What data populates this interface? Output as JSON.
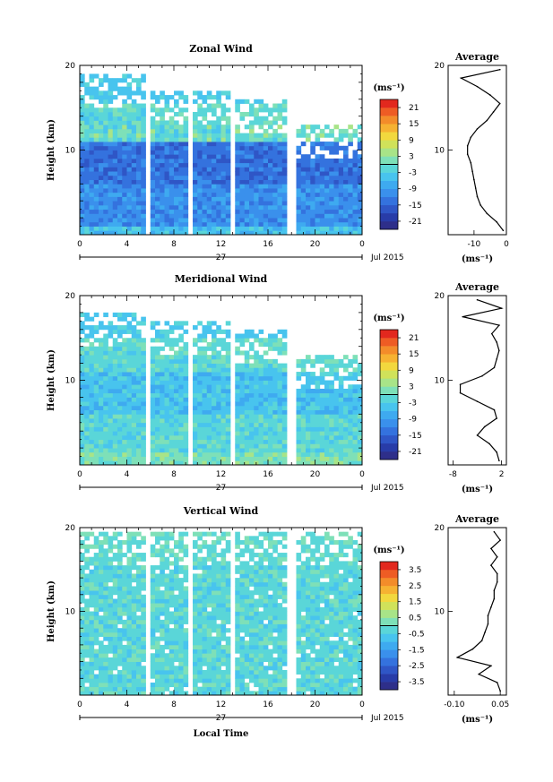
{
  "chart_data": [
    {
      "type": "heatmap",
      "title": "Zonal Wind",
      "ylabel": "Height (km)",
      "ylim": [
        0,
        20
      ],
      "yticks": [
        "10",
        "20"
      ],
      "xticks": [
        "0",
        "4",
        "8",
        "12",
        "16",
        "20",
        "0"
      ],
      "xlim": [
        0,
        24
      ],
      "date_label": "27",
      "month_label": "Jul 2015",
      "colorbar": {
        "unit": "(ms⁻¹)",
        "ticks": [
          "21",
          "15",
          "9",
          "3",
          "-3",
          "-9",
          "-15",
          "-21"
        ],
        "range": [
          -24,
          24
        ]
      },
      "gaps_hours": [
        [
          5.7,
          6.0
        ],
        [
          9.2,
          9.6
        ],
        [
          12.7,
          13.1
        ],
        [
          17.5,
          18.4
        ]
      ],
      "data_top_km": [
        19,
        17,
        16,
        13
      ],
      "profile": {
        "title": "Average",
        "xlabel": "(ms⁻¹)",
        "xticks": [
          "-10",
          "0"
        ],
        "xlim": [
          -18,
          0
        ],
        "heights": [
          0.5,
          1.5,
          2.5,
          3.5,
          4.5,
          5.5,
          6.5,
          7.5,
          8.5,
          9.5,
          10.5,
          11.5,
          12.5,
          13.5,
          14.5,
          15.5,
          16.5,
          17.5,
          18.5,
          19.5
        ],
        "values": [
          -1,
          -3,
          -6,
          -8,
          -9,
          -9.5,
          -10,
          -10.5,
          -11,
          -12,
          -12,
          -11,
          -9,
          -6,
          -4,
          -2,
          -5,
          -9,
          -14,
          -2
        ]
      }
    },
    {
      "type": "heatmap",
      "title": "Meridional Wind",
      "ylabel": "Height (km)",
      "ylim": [
        0,
        20
      ],
      "yticks": [
        "10",
        "20"
      ],
      "xticks": [
        "0",
        "4",
        "8",
        "12",
        "16",
        "20",
        "0"
      ],
      "xlim": [
        0,
        24
      ],
      "date_label": "27",
      "month_label": "Jul 2015",
      "colorbar": {
        "unit": "(ms⁻¹)",
        "ticks": [
          "21",
          "15",
          "9",
          "3",
          "-3",
          "-9",
          "-15",
          "-21"
        ],
        "range": [
          -24,
          24
        ]
      },
      "gaps_hours": [
        [
          5.7,
          6.0
        ],
        [
          9.2,
          9.6
        ],
        [
          12.7,
          13.1
        ],
        [
          17.5,
          18.4
        ]
      ],
      "data_top_km": [
        18,
        17,
        16,
        13
      ],
      "profile": {
        "title": "Average",
        "xlabel": "(ms⁻¹)",
        "xticks": [
          "-8",
          "2"
        ],
        "xlim": [
          -9,
          3
        ],
        "heights": [
          0.5,
          1.5,
          2.5,
          3.5,
          4.5,
          5.5,
          6.5,
          7.5,
          8.5,
          9.5,
          10.5,
          11.5,
          12.5,
          13.5,
          14.5,
          15.5,
          16.5,
          17.5,
          18.5,
          19.5
        ],
        "values": [
          1.5,
          1,
          -0.5,
          -3,
          -1.5,
          1,
          0.5,
          -3,
          -6.5,
          -6.5,
          -2,
          0.5,
          1,
          1.5,
          1,
          0,
          1.5,
          -6,
          2,
          -3
        ]
      }
    },
    {
      "type": "heatmap",
      "title": "Vertical Wind",
      "ylabel": "Height (km)",
      "xlabel": "Local Time",
      "ylim": [
        0,
        20
      ],
      "yticks": [
        "10",
        "20"
      ],
      "xticks": [
        "0",
        "4",
        "8",
        "12",
        "16",
        "20",
        "0"
      ],
      "xlim": [
        0,
        24
      ],
      "date_label": "27",
      "month_label": "Jul 2015",
      "colorbar": {
        "unit": "(ms⁻¹)",
        "ticks": [
          "3.5",
          "2.5",
          "1.5",
          "0.5",
          "-0.5",
          "-1.5",
          "-2.5",
          "-3.5"
        ],
        "range": [
          -4,
          4
        ]
      },
      "gaps_hours": [
        [
          5.7,
          6.0
        ],
        [
          9.2,
          9.6
        ],
        [
          12.7,
          13.1
        ],
        [
          17.5,
          18.4
        ]
      ],
      "data_top_km": [
        19.5,
        19.5,
        19.5,
        19.5
      ],
      "profile": {
        "title": "Average",
        "xlabel": "(ms⁻¹)",
        "xticks": [
          "-0.10",
          "0.05"
        ],
        "xlim": [
          -0.12,
          0.07
        ],
        "heights": [
          0.5,
          1.5,
          2.5,
          3.5,
          4.5,
          5.5,
          6.5,
          7.5,
          8.5,
          9.5,
          10.5,
          11.5,
          12.5,
          13.5,
          14.5,
          15.5,
          16.5,
          17.5,
          18.5,
          19.5
        ],
        "values": [
          0.05,
          0.04,
          -0.02,
          0.02,
          -0.09,
          -0.04,
          -0.01,
          0.0,
          0.01,
          0.01,
          0.02,
          0.03,
          0.03,
          0.04,
          0.04,
          0.02,
          0.04,
          0.02,
          0.05,
          0.03
        ]
      }
    }
  ]
}
